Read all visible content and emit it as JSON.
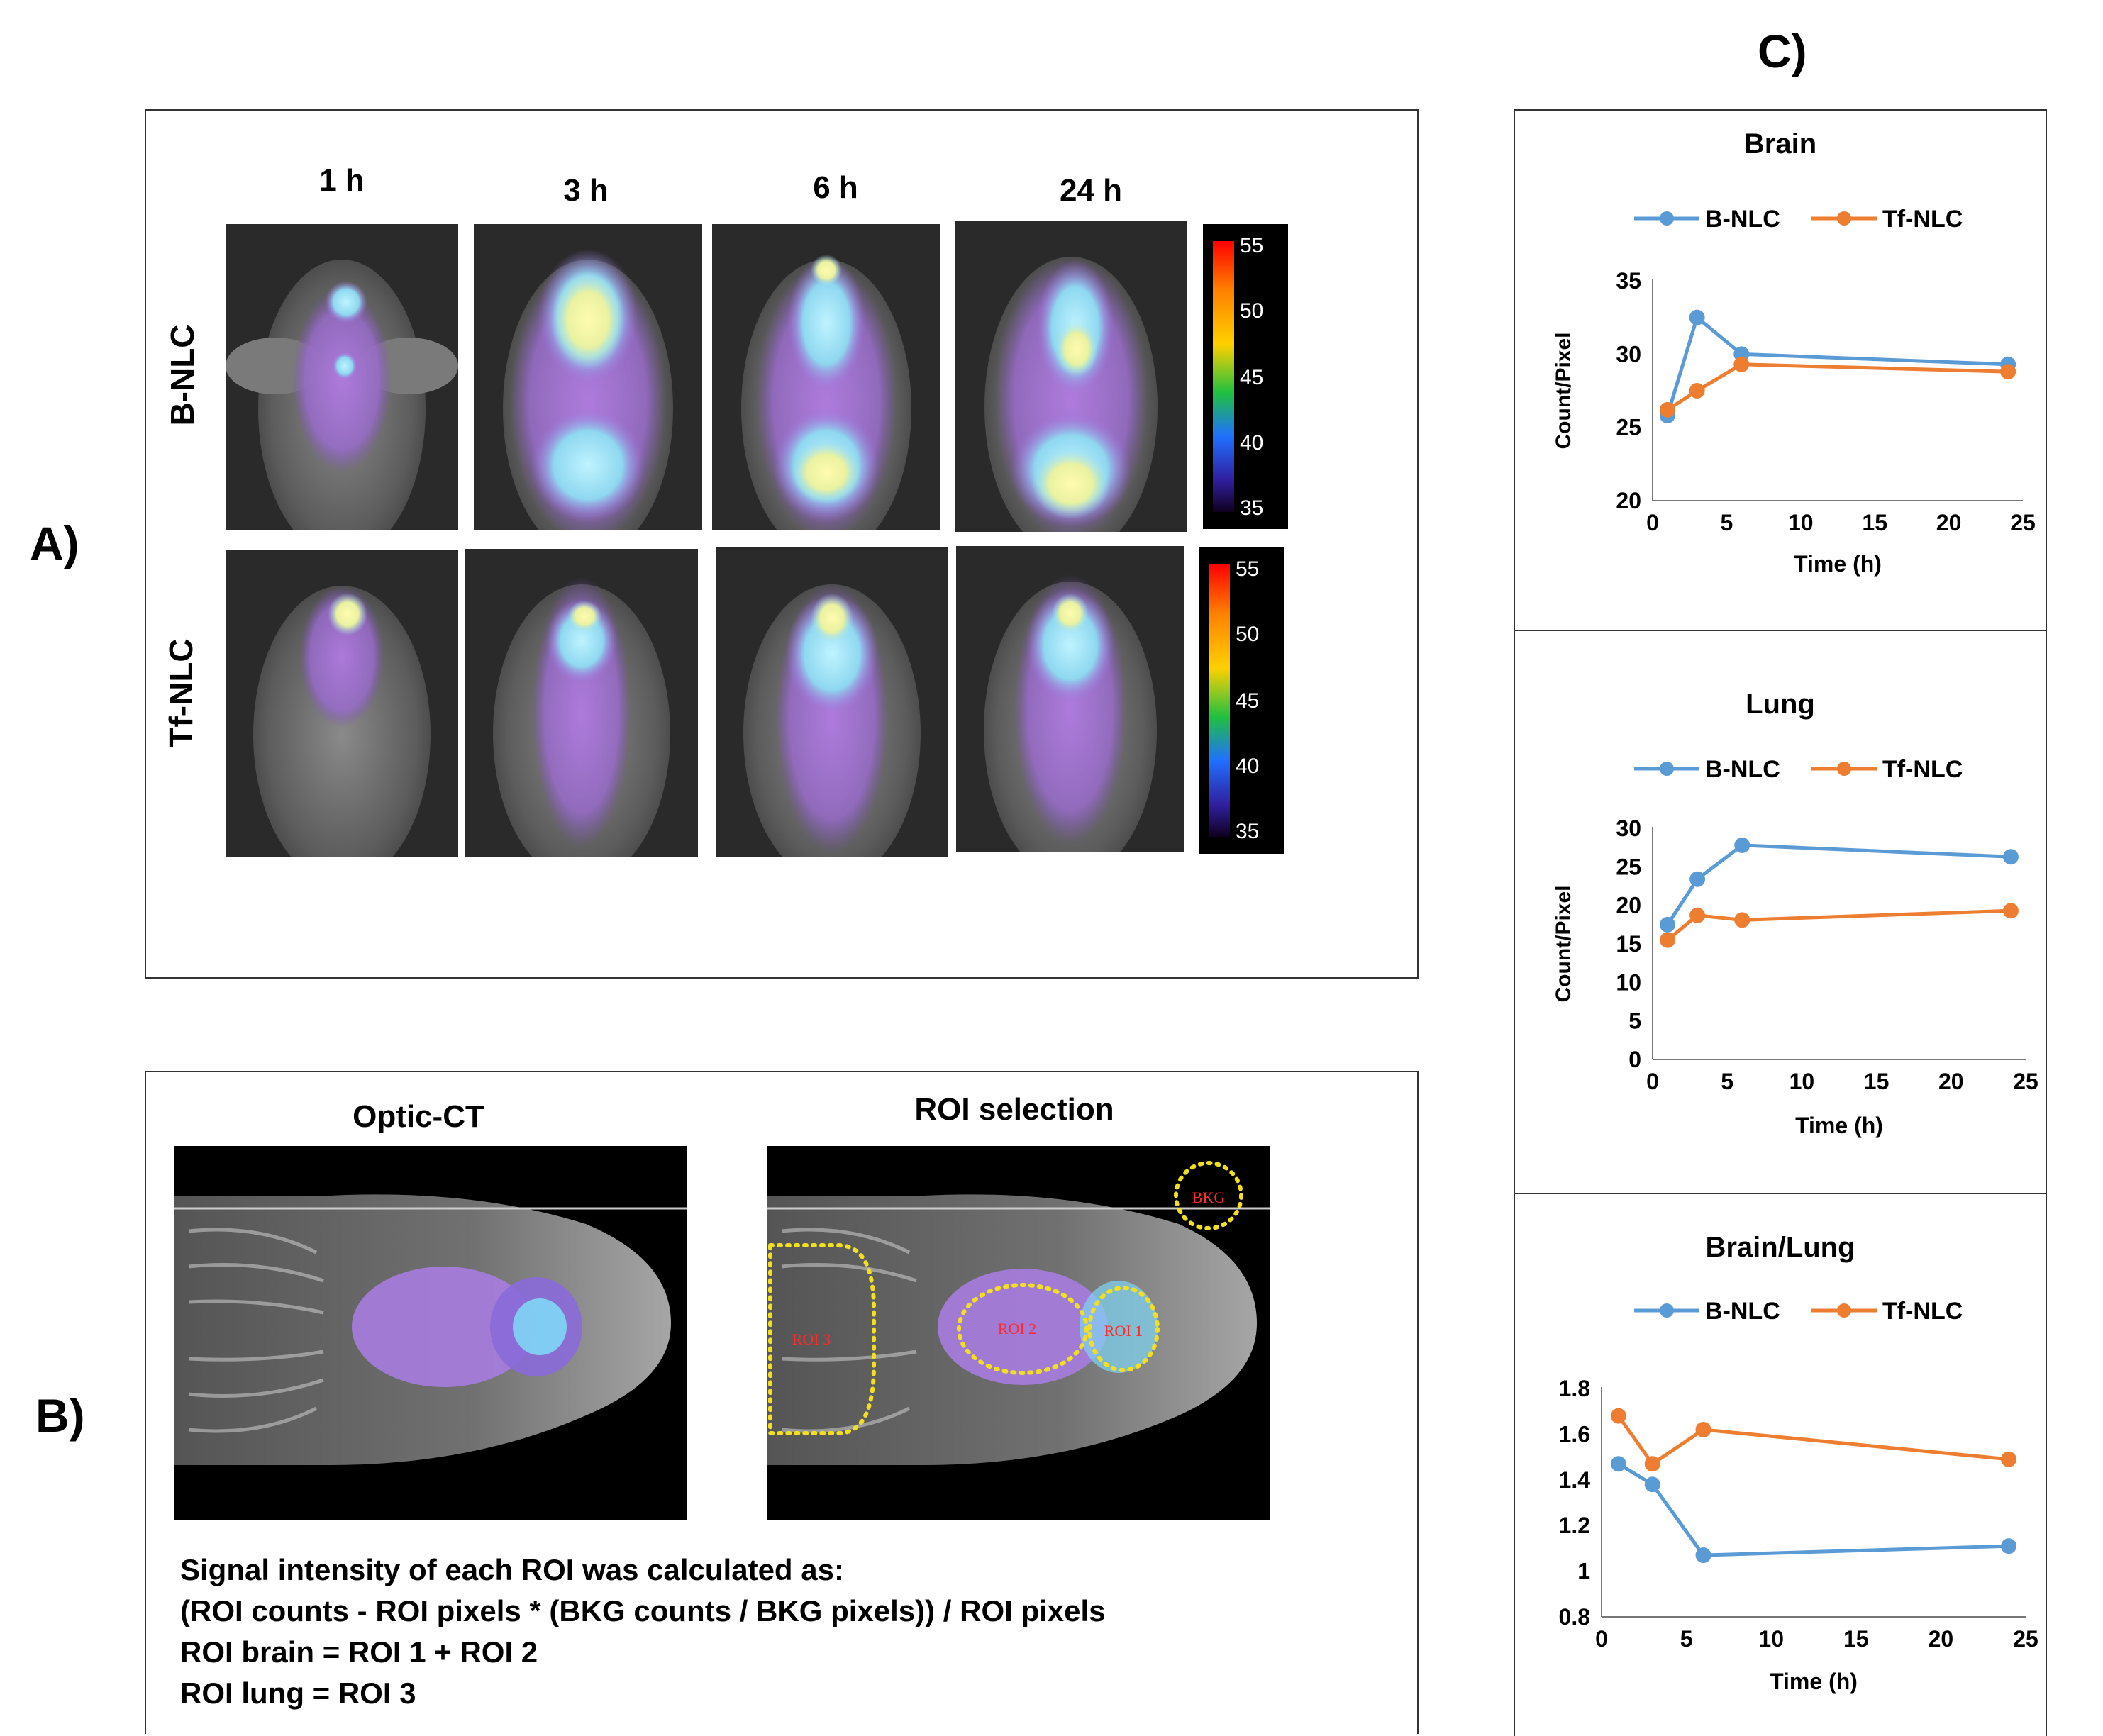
{
  "panels": {
    "a": "A)",
    "b": "B)",
    "c": "C)"
  },
  "panel_a": {
    "time_labels": [
      "1 h",
      "3 h",
      "6 h",
      "24 h"
    ],
    "row_labels": [
      "B-NLC",
      "Tf-NLC"
    ],
    "colorbar_ticks": [
      "55",
      "50",
      "45",
      "40",
      "35"
    ]
  },
  "panel_b": {
    "left_title": "Optic-CT",
    "right_title": "ROI selection",
    "roi_labels": {
      "bkg": "BKG",
      "roi1": "ROI 1",
      "roi2": "ROI 2",
      "roi3": "ROI 3"
    },
    "formula_lines": [
      "Signal intensity of each ROI was calculated as:",
      "(ROI counts - ROI pixels * (BKG counts / BKG pixels)) / ROI pixels",
      "ROI brain = ROI 1 + ROI 2",
      "ROI lung = ROI 3"
    ]
  },
  "colors": {
    "b_nlc": "#5b9bd5",
    "tf_nlc": "#ed7d31"
  },
  "chart_data": [
    {
      "type": "line",
      "title": "Brain",
      "xlabel": "Time  (h)",
      "ylabel": "Count/Pixel",
      "x": [
        1,
        3,
        6,
        24
      ],
      "xlim": [
        0,
        25
      ],
      "ylim": [
        20,
        35
      ],
      "xticks": [
        0,
        5,
        10,
        15,
        20,
        25
      ],
      "yticks": [
        20,
        25,
        30,
        35
      ],
      "series": [
        {
          "name": "B-NLC",
          "values": [
            25.8,
            32.5,
            30.0,
            29.3
          ]
        },
        {
          "name": "Tf-NLC",
          "values": [
            26.2,
            27.5,
            29.3,
            28.8
          ]
        }
      ]
    },
    {
      "type": "line",
      "title": "Lung",
      "xlabel": "Time  (h)",
      "ylabel": "Count/Pixel",
      "x": [
        1,
        3,
        6,
        24
      ],
      "xlim": [
        0,
        25
      ],
      "ylim": [
        0,
        30
      ],
      "xticks": [
        0,
        5,
        10,
        15,
        20,
        25
      ],
      "yticks": [
        0,
        5,
        10,
        15,
        20,
        25,
        30
      ],
      "series": [
        {
          "name": "B-NLC",
          "values": [
            17.5,
            23.4,
            27.8,
            26.3
          ]
        },
        {
          "name": "Tf-NLC",
          "values": [
            15.5,
            18.7,
            18.1,
            19.3
          ]
        }
      ]
    },
    {
      "type": "line",
      "title": "Brain/Lung",
      "xlabel": "Time  (h)",
      "ylabel": "",
      "x": [
        1,
        3,
        6,
        24
      ],
      "xlim": [
        0,
        25
      ],
      "ylim": [
        0.8,
        1.8
      ],
      "xticks": [
        0,
        5,
        10,
        15,
        20,
        25
      ],
      "yticks": [
        0.8,
        1,
        1.2,
        1.4,
        1.6,
        1.8
      ],
      "series": [
        {
          "name": "B-NLC",
          "values": [
            1.47,
            1.38,
            1.07,
            1.11
          ]
        },
        {
          "name": "Tf-NLC",
          "values": [
            1.68,
            1.47,
            1.62,
            1.49
          ]
        }
      ]
    }
  ]
}
